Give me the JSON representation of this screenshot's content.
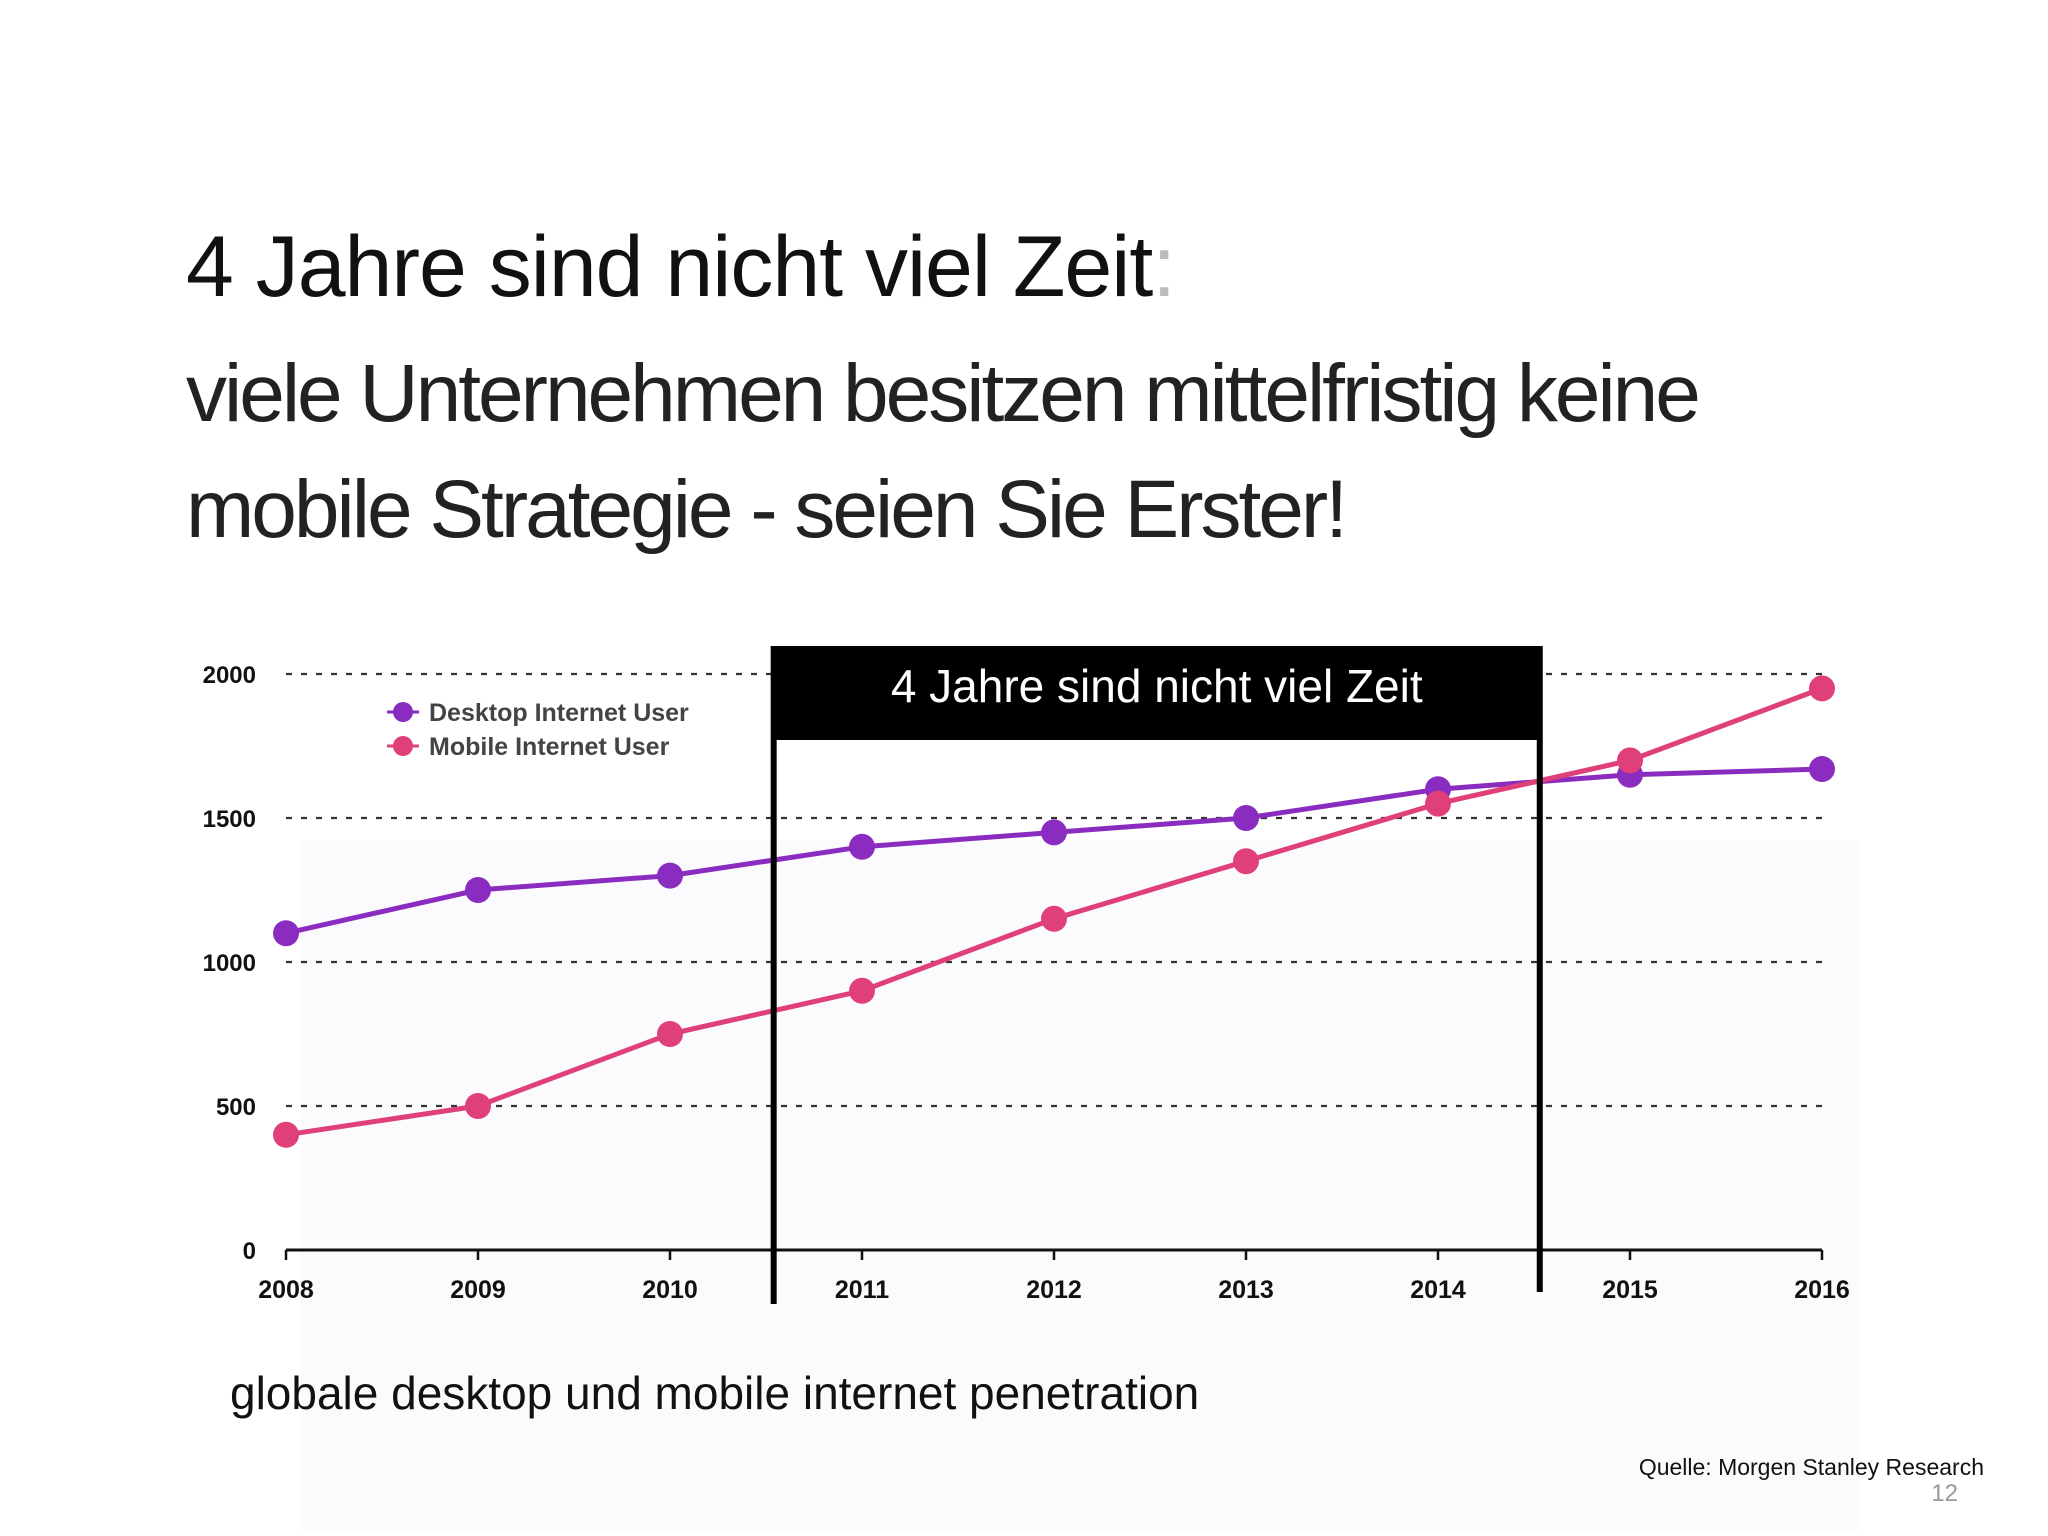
{
  "slide": {
    "title": "4 Jahre sind nicht viel Zeit",
    "title_colon": ":",
    "subtitle_line1": "viele Unternehmen besitzen mittelfristig keine",
    "subtitle_line2": "mobile Strategie - seien Sie Erster!",
    "caption": "globale desktop und mobile internet penetration",
    "source": "Quelle: Morgen Stanley Research",
    "page_number": "12"
  },
  "chart_data": {
    "type": "line",
    "categories": [
      "2008",
      "2009",
      "2010",
      "2011",
      "2012",
      "2013",
      "2014",
      "2015",
      "2016"
    ],
    "series": [
      {
        "name": "Desktop Internet User",
        "color": "#8b2cc1",
        "values": [
          1100,
          1250,
          1300,
          1400,
          1450,
          1500,
          1600,
          1650,
          1670
        ]
      },
      {
        "name": "Mobile Internet User",
        "color": "#e0407a",
        "values": [
          400,
          500,
          750,
          900,
          1150,
          1350,
          1550,
          1700,
          1950
        ]
      }
    ],
    "ylim": [
      0,
      2000
    ],
    "yticks": [
      "0",
      "500",
      "1000",
      "1500",
      "2000"
    ],
    "grid": "dashed horizontal",
    "legend": "top-left",
    "highlight": {
      "label": "4 Jahre sind nicht viel Zeit",
      "from_x": 2010.54,
      "to_x": 2014.53
    }
  }
}
